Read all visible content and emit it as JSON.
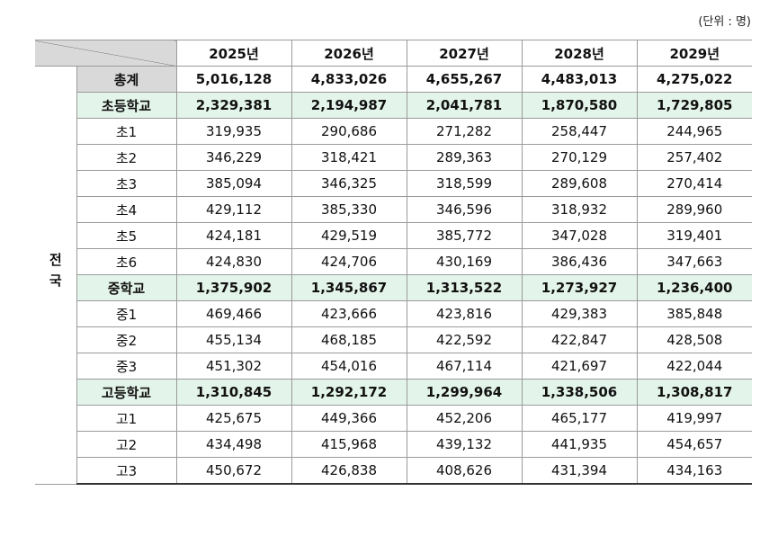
{
  "unit_note": "(단위 : 명)",
  "table": {
    "header": [
      "2025년",
      "2026년",
      "2027년",
      "2028년",
      "2029년"
    ],
    "region": "전국",
    "rows": [
      [
        "총계",
        "5,016,128",
        "4,833,026",
        "4,655,267",
        "4,483,013",
        "4,275,022"
      ],
      [
        "초등학교",
        "2,329,381",
        "2,194,987",
        "2,041,781",
        "1,870,580",
        "1,729,805"
      ],
      [
        "초1",
        "319,935",
        "290,686",
        "271,282",
        "258,447",
        "244,965"
      ],
      [
        "초2",
        "346,229",
        "318,421",
        "289,363",
        "270,129",
        "257,402"
      ],
      [
        "초3",
        "385,094",
        "346,325",
        "318,599",
        "289,608",
        "270,414"
      ],
      [
        "초4",
        "429,112",
        "385,330",
        "346,596",
        "318,932",
        "289,960"
      ],
      [
        "초5",
        "424,181",
        "429,519",
        "385,772",
        "347,028",
        "319,401"
      ],
      [
        "초6",
        "424,830",
        "424,706",
        "430,169",
        "386,436",
        "347,663"
      ],
      [
        "중학교",
        "1,375,902",
        "1,345,867",
        "1,313,522",
        "1,273,927",
        "1,236,400"
      ],
      [
        "중1",
        "469,466",
        "423,666",
        "423,816",
        "429,383",
        "385,848"
      ],
      [
        "중2",
        "455,134",
        "468,185",
        "422,592",
        "422,847",
        "428,508"
      ],
      [
        "중3",
        "451,302",
        "454,016",
        "467,114",
        "421,697",
        "422,044"
      ],
      [
        "고등학교",
        "1,310,845",
        "1,292,172",
        "1,299,964",
        "1,338,506",
        "1,308,817"
      ],
      [
        "고1",
        "425,675",
        "449,366",
        "452,206",
        "465,177",
        "419,997"
      ],
      [
        "고2",
        "434,498",
        "415,968",
        "439,132",
        "441,935",
        "454,657"
      ],
      [
        "고3",
        "450,672",
        "426,838",
        "408,626",
        "431,394",
        "434,163"
      ]
    ]
  }
}
